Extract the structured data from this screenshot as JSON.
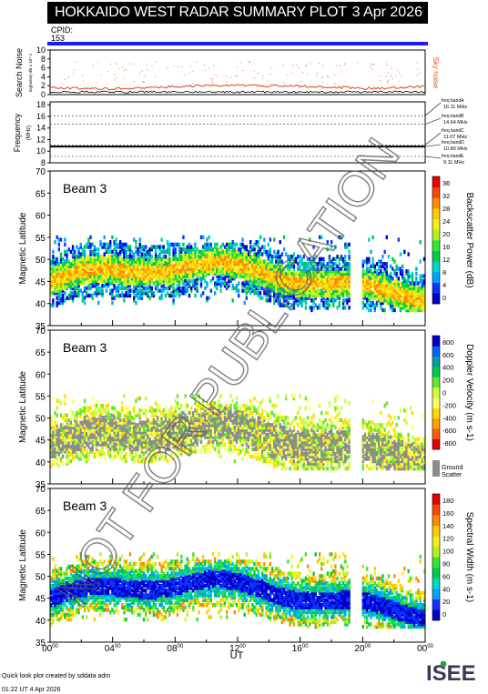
{
  "header": {
    "title": "HOKKAIDO WEST RADAR SUMMARY PLOT",
    "date": "3 Apr 2026"
  },
  "cpid": {
    "label": "CPID:",
    "value": "153"
  },
  "noise_panel": {
    "ylabel": "Search Noise",
    "ylabel_small": "log(noise) dB x 10^-1",
    "right_label": "Sky noise",
    "ticks": [
      0,
      2,
      4,
      6,
      8,
      10
    ],
    "ylim": [
      0,
      10
    ]
  },
  "freq_panel": {
    "ylabel": "Frequency",
    "units": "(MHz)",
    "ticks": [
      8,
      10,
      12,
      14,
      16,
      18
    ],
    "ylim": [
      8,
      18.5
    ],
    "bands": [
      {
        "label": "freq bandA",
        "value": "16.11 MHz",
        "mhz": 16.11
      },
      {
        "label": "freq bandB",
        "value": "14.64 MHz",
        "mhz": 14.64
      },
      {
        "label": "freq bandC",
        "value": "11.07 MHz",
        "mhz": 11.07
      },
      {
        "label": "freq bandD",
        "value": "10.80 MHz",
        "mhz": 10.8
      },
      {
        "label": "freq bandE",
        "value": "9.11 MHz",
        "mhz": 9.11
      }
    ],
    "active_mhz": 10.8
  },
  "panels": [
    {
      "beam": "Beam  3",
      "ylabel": "Magnetic Latitude",
      "yticks": [
        35,
        40,
        45,
        50,
        55,
        60,
        65,
        70
      ],
      "ylim": [
        35,
        70
      ],
      "colorbar": {
        "label": "Backscatter Power (dB)",
        "ticks": [
          "0",
          "4",
          "8",
          "12",
          "16",
          "20",
          "24",
          "28",
          "32",
          "36"
        ],
        "colors": [
          "#0000c8",
          "#0a33ff",
          "#00a0ff",
          "#00d2c8",
          "#00c850",
          "#32e632",
          "#b4f01e",
          "#f0f014",
          "#ffc800",
          "#ff8c00",
          "#ff4600",
          "#e60000"
        ],
        "ground_scatter": false
      }
    },
    {
      "beam": "Beam  3",
      "ylabel": "Magnetic Latitude",
      "yticks": [
        35,
        40,
        45,
        50,
        55,
        60,
        65,
        70
      ],
      "ylim": [
        35,
        70
      ],
      "colorbar": {
        "label": "Doppler Velocity (m s-1)",
        "ticks": [
          "-800",
          "-600",
          "-400",
          "-200",
          "0",
          "200",
          "400",
          "600",
          "800"
        ],
        "colors": [
          "#e60000",
          "#ff5a00",
          "#ffa000",
          "#ffdc00",
          "#ffff64",
          "#c8ff3c",
          "#64e632",
          "#00c850",
          "#00a0a0",
          "#0064ff",
          "#0000c8"
        ],
        "ground_scatter": true,
        "ground_label_1": "Ground",
        "ground_label_2": "Scatter"
      }
    },
    {
      "beam": "Beam  3",
      "ylabel": "Magnetic Latitude",
      "yticks": [
        35,
        40,
        45,
        50,
        55,
        60,
        65,
        70
      ],
      "ylim": [
        35,
        70
      ],
      "colorbar": {
        "label": "Spectral Width (m s-1)",
        "ticks": [
          "0",
          "20",
          "40",
          "60",
          "80",
          "100",
          "120",
          "140",
          "160",
          "180"
        ],
        "colors": [
          "#0000c8",
          "#0a33ff",
          "#00a0ff",
          "#00d2c8",
          "#00c850",
          "#32e632",
          "#b4f01e",
          "#f0f014",
          "#ffc800",
          "#ff8c00",
          "#ff4600",
          "#e60000"
        ],
        "ground_scatter": false
      }
    }
  ],
  "xaxis": {
    "label": "UT",
    "ticks": [
      {
        "h": "00",
        "m": "00"
      },
      {
        "h": "04",
        "m": "00"
      },
      {
        "h": "08",
        "m": "00"
      },
      {
        "h": "12",
        "m": "00"
      },
      {
        "h": "16",
        "m": "00"
      },
      {
        "h": "20",
        "m": "00"
      },
      {
        "h": "00",
        "m": "00"
      }
    ]
  },
  "watermark": "NOT FOR PUBLICATION",
  "footer": {
    "line1": "Quick look plot created by sddata adm",
    "line2": "01:22 UT  4 Apr 2026"
  },
  "logo": {
    "text": "ISEE"
  },
  "chart_data": [
    {
      "type": "line",
      "title": "Search Noise",
      "ylabel": "Search Noise",
      "x_range_hours": [
        0,
        24
      ],
      "ylim": [
        0,
        10
      ],
      "series": [
        {
          "name": "Sky noise",
          "color": "#e8501e",
          "x": [
            0,
            2,
            4,
            6,
            8,
            10,
            12,
            14,
            16,
            18,
            20,
            22,
            24
          ],
          "values": [
            1.6,
            1.4,
            1.3,
            1.5,
            1.8,
            2.0,
            2.1,
            2.0,
            1.9,
            1.7,
            1.4,
            1.5,
            1.8
          ]
        }
      ]
    },
    {
      "type": "line",
      "title": "Frequency",
      "ylabel": "Frequency (MHz)",
      "x_range_hours": [
        0,
        24
      ],
      "ylim": [
        8,
        18.5
      ],
      "series": [
        {
          "x": [
            0,
            24
          ],
          "values": [
            10.8,
            10.8
          ]
        }
      ]
    },
    {
      "type": "heatmap",
      "title": "Backscatter Power (dB)",
      "xlabel": "UT",
      "ylabel": "Magnetic Latitude",
      "ylim": [
        35,
        70
      ],
      "x_range_hours": [
        0,
        24
      ],
      "values_range": [
        0,
        36
      ]
    },
    {
      "type": "heatmap",
      "title": "Doppler Velocity (m s-1)",
      "xlabel": "UT",
      "ylabel": "Magnetic Latitude",
      "ylim": [
        35,
        70
      ],
      "x_range_hours": [
        0,
        24
      ],
      "values_range": [
        -800,
        800
      ]
    },
    {
      "type": "heatmap",
      "title": "Spectral Width (m s-1)",
      "xlabel": "UT",
      "ylabel": "Magnetic Latitude",
      "ylim": [
        35,
        70
      ],
      "x_range_hours": [
        0,
        24
      ],
      "values_range": [
        0,
        180
      ]
    }
  ]
}
